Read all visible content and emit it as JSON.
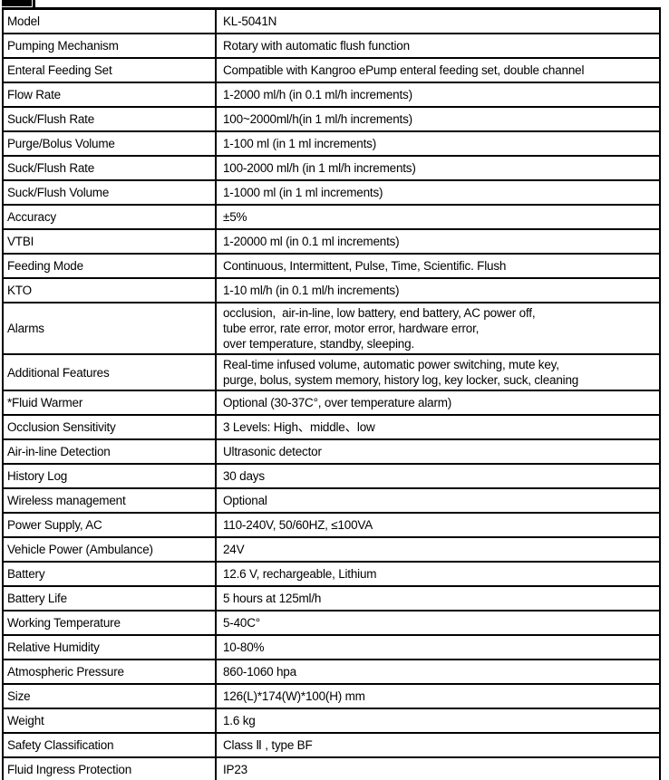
{
  "table": {
    "rows": [
      {
        "label": "Model",
        "value": "KL-5041N"
      },
      {
        "label": "Pumping Mechanism",
        "value": "Rotary with automatic flush function"
      },
      {
        "label": "Enteral Feeding Set",
        "value": "Compatible with Kangroo ePump enteral feeding set, double channel"
      },
      {
        "label": "Flow Rate",
        "value": "1-2000 ml/h (in 0.1 ml/h increments)"
      },
      {
        "label": "Suck/Flush Rate",
        "value": "100~2000ml/h(in 1 ml/h increments)"
      },
      {
        "label": "Purge/Bolus Volume",
        "value": "1-100 ml (in 1 ml increments)"
      },
      {
        "label": "Suck/Flush Rate",
        "value": "100-2000 ml/h (in 1 ml/h increments)"
      },
      {
        "label": "Suck/Flush Volume",
        "value": "1-1000 ml (in 1 ml increments)"
      },
      {
        "label": "Accuracy",
        "value": "±5%"
      },
      {
        "label": "VTBI",
        "value": "1-20000 ml (in 0.1 ml increments)"
      },
      {
        "label": "Feeding Mode",
        "value": "Continuous, Intermittent, Pulse, Time, Scientific. Flush"
      },
      {
        "label": "KTO",
        "value": "1-10 ml/h (in 0.1 ml/h increments)"
      },
      {
        "label": "Alarms",
        "value": "occlusion,  air-in-line, low battery, end battery, AC power off,\ntube error, rate error, motor error, hardware error,\nover temperature, standby, sleeping."
      },
      {
        "label": "Additional Features",
        "value": "Real-time infused volume, automatic power switching, mute key,\npurge, bolus, system memory, history log, key locker, suck, cleaning"
      },
      {
        "label": "*Fluid Warmer",
        "value": "Optional (30-37C°, over temperature alarm)"
      },
      {
        "label": "Occlusion Sensitivity",
        "value": "3 Levels: High、middle、low"
      },
      {
        "label": "Air-in-line Detection",
        "value": "Ultrasonic detector"
      },
      {
        "label": "History Log",
        "value": "30 days"
      },
      {
        "label": "Wireless management",
        "value": "Optional"
      },
      {
        "label": "Power Supply, AC",
        "value": "110-240V, 50/60HZ, ≤100VA"
      },
      {
        "label": "Vehicle Power (Ambulance)",
        "value": "24V"
      },
      {
        "label": "Battery",
        "value": "12.6 V, rechargeable, Lithium"
      },
      {
        "label": "Battery Life",
        "value": "5 hours at 125ml/h"
      },
      {
        "label": "Working Temperature",
        "value": "5-40C°"
      },
      {
        "label": "Relative Humidity",
        "value": "10-80%"
      },
      {
        "label": "Atmospheric Pressure",
        "value": "860-1060 hpa"
      },
      {
        "label": "Size",
        "value": "126(L)*174(W)*100(H) mm"
      },
      {
        "label": "Weight",
        "value": "1.6 kg"
      },
      {
        "label": "Safety Classification",
        "value": "Class Ⅱ , type BF"
      },
      {
        "label": "Fluid Ingress Protection",
        "value": "IP23"
      }
    ]
  }
}
